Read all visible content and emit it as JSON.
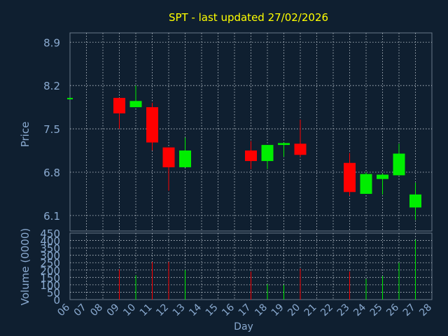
{
  "colors": {
    "background": "#0f1f30",
    "frame": "#6a7a8a",
    "grid": "#c8d0d8",
    "title": "#ffff00",
    "axis_text": "#8aaad0",
    "up": "#00ee00",
    "down": "#ff0000"
  },
  "chart_data": [
    {
      "type": "candlestick",
      "title": "SPT - last updated 27/02/2026",
      "ylabel": "Price",
      "ylim": [
        5.85,
        9.05
      ],
      "yticks": [
        "8.9",
        "8.2",
        "7.5",
        "6.8",
        "6.1"
      ],
      "grid": true,
      "candles": [
        {
          "day": "06",
          "open": 8.0,
          "high": 8.0,
          "low": 8.0,
          "close": 8.0
        },
        {
          "day": "09",
          "open": 8.0,
          "high": 8.0,
          "low": 7.5,
          "close": 7.75
        },
        {
          "day": "10",
          "open": 7.85,
          "high": 8.2,
          "low": 7.85,
          "close": 7.95
        },
        {
          "day": "11",
          "open": 7.85,
          "high": 7.92,
          "low": 7.15,
          "close": 7.28
        },
        {
          "day": "12",
          "open": 7.2,
          "high": 7.2,
          "low": 6.5,
          "close": 6.88
        },
        {
          "day": "13",
          "open": 6.88,
          "high": 7.36,
          "low": 6.88,
          "close": 7.15
        },
        {
          "day": "17",
          "open": 7.15,
          "high": 7.3,
          "low": 6.85,
          "close": 6.98
        },
        {
          "day": "18",
          "open": 6.98,
          "high": 7.24,
          "low": 6.85,
          "close": 7.24
        },
        {
          "day": "19",
          "open": 7.24,
          "high": 7.28,
          "low": 7.05,
          "close": 7.27
        },
        {
          "day": "20",
          "open": 7.26,
          "high": 7.65,
          "low": 7.05,
          "close": 7.08
        },
        {
          "day": "23",
          "open": 6.95,
          "high": 7.11,
          "low": 6.42,
          "close": 6.48
        },
        {
          "day": "24",
          "open": 6.45,
          "high": 6.8,
          "low": 6.45,
          "close": 6.77
        },
        {
          "day": "25",
          "open": 6.69,
          "high": 6.78,
          "low": 6.44,
          "close": 6.76
        },
        {
          "day": "26",
          "open": 6.75,
          "high": 7.26,
          "low": 6.75,
          "close": 7.1
        },
        {
          "day": "27",
          "open": 6.23,
          "high": 6.63,
          "low": 6.03,
          "close": 6.44
        }
      ]
    },
    {
      "type": "bar",
      "ylabel": "Volume (0000)",
      "xlabel": "Day",
      "ylim": [
        0,
        450
      ],
      "yticks": [
        "450",
        "400",
        "350",
        "300",
        "250",
        "200",
        "150",
        "100",
        "50",
        "0"
      ],
      "categories": [
        "06",
        "07",
        "08",
        "09",
        "10",
        "11",
        "12",
        "13",
        "14",
        "15",
        "16",
        "17",
        "18",
        "19",
        "20",
        "21",
        "22",
        "23",
        "24",
        "25",
        "26",
        "27",
        "28"
      ],
      "bars": [
        {
          "day": "09",
          "value": 205,
          "direction": "down"
        },
        {
          "day": "10",
          "value": 165,
          "direction": "up"
        },
        {
          "day": "11",
          "value": 255,
          "direction": "down"
        },
        {
          "day": "12",
          "value": 255,
          "direction": "down"
        },
        {
          "day": "13",
          "value": 200,
          "direction": "up"
        },
        {
          "day": "17",
          "value": 190,
          "direction": "down"
        },
        {
          "day": "18",
          "value": 105,
          "direction": "up"
        },
        {
          "day": "19",
          "value": 100,
          "direction": "up"
        },
        {
          "day": "20",
          "value": 210,
          "direction": "down"
        },
        {
          "day": "23",
          "value": 190,
          "direction": "down"
        },
        {
          "day": "24",
          "value": 140,
          "direction": "up"
        },
        {
          "day": "25",
          "value": 160,
          "direction": "up"
        },
        {
          "day": "26",
          "value": 250,
          "direction": "up"
        },
        {
          "day": "27",
          "value": 405,
          "direction": "up"
        }
      ]
    }
  ]
}
